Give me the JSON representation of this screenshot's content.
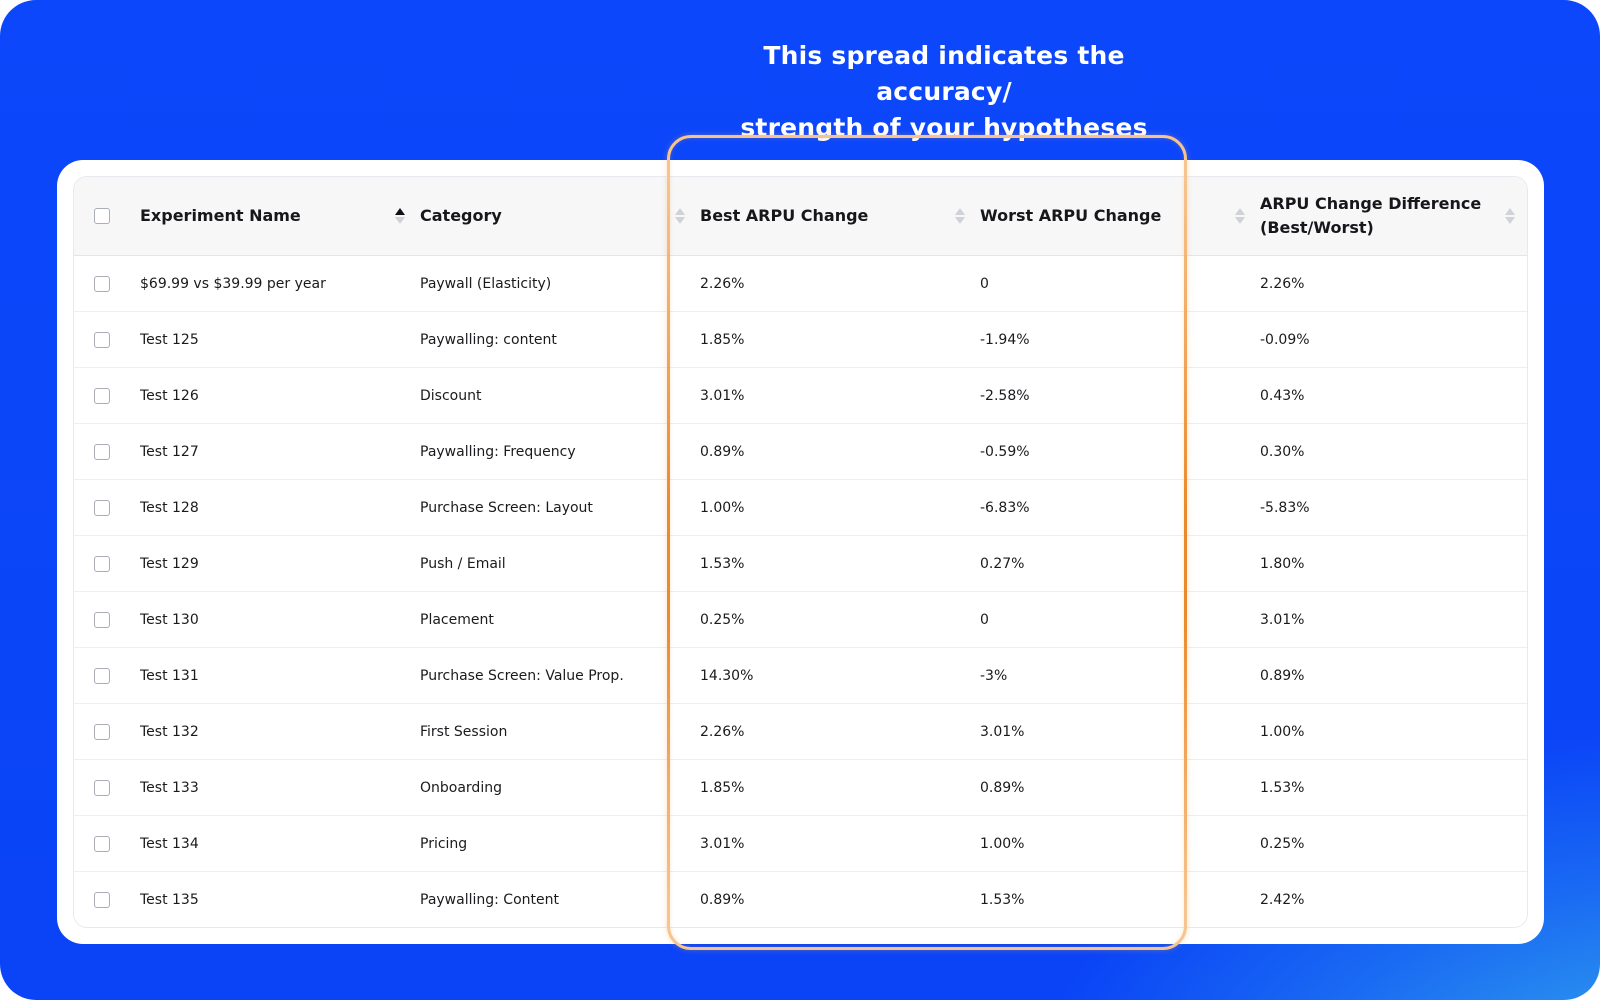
{
  "headline": {
    "line1": "This spread indicates the accuracy/",
    "line2": "strength of your hypotheses"
  },
  "table": {
    "columns": {
      "name": "Experiment Name",
      "category": "Category",
      "best": "Best ARPU Change",
      "worst": "Worst ARPU Change",
      "diff_line1": "ARPU Change Difference",
      "diff_line2": "(Best/Worst)"
    },
    "sorted_column": "Experiment Name",
    "sort_direction": "ascending",
    "rows": [
      {
        "name": "$69.99 vs $39.99 per year",
        "category": "Paywall (Elasticity)",
        "best": "2.26%",
        "worst": "0",
        "diff": "2.26%"
      },
      {
        "name": "Test 125",
        "category": "Paywalling: content",
        "best": "1.85%",
        "worst": "-1.94%",
        "diff": "-0.09%"
      },
      {
        "name": "Test 126",
        "category": "Discount",
        "best": "3.01%",
        "worst": "-2.58%",
        "diff": "0.43%"
      },
      {
        "name": "Test 127",
        "category": "Paywalling: Frequency",
        "best": "0.89%",
        "worst": "-0.59%",
        "diff": "0.30%"
      },
      {
        "name": "Test 128",
        "category": "Purchase Screen: Layout",
        "best": "1.00%",
        "worst": "-6.83%",
        "diff": "-5.83%"
      },
      {
        "name": "Test 129",
        "category": "Push / Email",
        "best": "1.53%",
        "worst": "0.27%",
        "diff": "1.80%"
      },
      {
        "name": "Test 130",
        "category": "Placement",
        "best": "0.25%",
        "worst": "0",
        "diff": "3.01%"
      },
      {
        "name": "Test 131",
        "category": "Purchase Screen: Value Prop.",
        "best": "14.30%",
        "worst": "-3%",
        "diff": "0.89%"
      },
      {
        "name": "Test 132",
        "category": "First Session",
        "best": "2.26%",
        "worst": "3.01%",
        "diff": "1.00%"
      },
      {
        "name": "Test 133",
        "category": "Onboarding",
        "best": "1.85%",
        "worst": "0.89%",
        "diff": "1.53%"
      },
      {
        "name": "Test 134",
        "category": "Pricing",
        "best": "3.01%",
        "worst": "1.00%",
        "diff": "0.25%"
      },
      {
        "name": "Test 135",
        "category": "Paywalling: Content",
        "best": "0.89%",
        "worst": "1.53%",
        "diff": "2.42%"
      }
    ]
  },
  "colors": {
    "background": "#0d47fb",
    "highlight_border": "#f6c48f",
    "highlight_glow": "#ea8a2e"
  }
}
